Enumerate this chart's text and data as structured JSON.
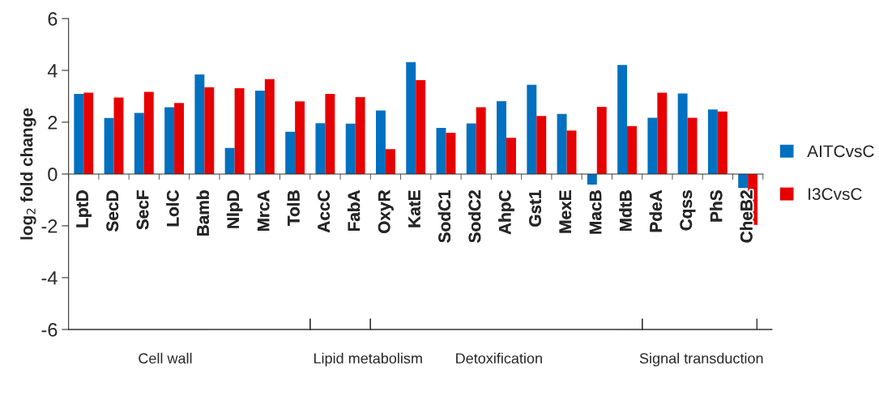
{
  "chart_data": {
    "type": "bar",
    "categories": [
      "LptD",
      "SecD",
      "SecF",
      "LolC",
      "Bamb",
      "NlpD",
      "MrcA",
      "TolB",
      "AccC",
      "FabA",
      "OxyR",
      "KatE",
      "SodC1",
      "SodC2",
      "AhpC",
      "Gst1",
      "MexE",
      "MacB",
      "MdtB",
      "PdeA",
      "Cqss",
      "PhS",
      "CheB2"
    ],
    "series": [
      {
        "name": "AITCvsC",
        "color": "#0070c0",
        "values": [
          3.09,
          2.16,
          2.36,
          2.58,
          3.84,
          1.01,
          3.22,
          1.63,
          1.96,
          1.94,
          2.45,
          4.32,
          1.78,
          1.95,
          2.81,
          3.44,
          2.32,
          -0.41,
          4.21,
          2.17,
          3.11,
          2.49,
          -0.54
        ]
      },
      {
        "name": "I3CvsC",
        "color": "#e60000",
        "values": [
          3.14,
          2.95,
          3.17,
          2.74,
          3.35,
          3.31,
          3.66,
          2.8,
          3.09,
          2.97,
          0.96,
          3.62,
          1.59,
          2.58,
          1.4,
          2.24,
          1.68,
          2.59,
          1.85,
          3.14,
          2.17,
          2.41,
          -1.96
        ]
      }
    ],
    "ylabel": "log$_{2}$ fold change",
    "ylim": [
      -6,
      6
    ],
    "yticks": [
      -6,
      -4,
      -2,
      0,
      2,
      4,
      6
    ],
    "annotations": [
      "Cell wall",
      "Lipid metabolism",
      "Detoxification",
      "Signal transduction"
    ],
    "legend": "right",
    "grid": false
  }
}
